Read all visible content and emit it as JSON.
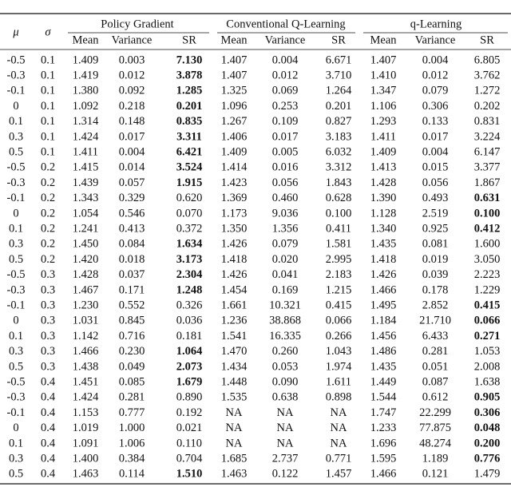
{
  "table": {
    "header": {
      "mu": "μ",
      "sigma": "σ",
      "groups": [
        "Policy Gradient",
        "Conventional Q-Learning",
        "q-Learning"
      ],
      "subheaders": [
        "Mean",
        "Variance",
        "SR",
        "Mean",
        "Variance",
        "SR",
        "Mean",
        "Variance",
        "SR"
      ]
    },
    "rows": [
      {
        "cells": [
          "-0.5",
          "0.1",
          "1.409",
          "0.003",
          "7.130",
          "1.407",
          "0.004",
          "6.671",
          "1.407",
          "0.004",
          "6.805"
        ],
        "bold": [
          4
        ]
      },
      {
        "cells": [
          "-0.3",
          "0.1",
          "1.419",
          "0.012",
          "3.878",
          "1.407",
          "0.012",
          "3.710",
          "1.410",
          "0.012",
          "3.762"
        ],
        "bold": [
          4
        ]
      },
      {
        "cells": [
          "-0.1",
          "0.1",
          "1.380",
          "0.092",
          "1.285",
          "1.325",
          "0.069",
          "1.264",
          "1.347",
          "0.079",
          "1.272"
        ],
        "bold": [
          4
        ]
      },
      {
        "cells": [
          "0",
          "0.1",
          "1.092",
          "0.218",
          "0.201",
          "1.096",
          "0.253",
          "0.201",
          "1.106",
          "0.306",
          "0.202"
        ],
        "bold": [
          4
        ]
      },
      {
        "cells": [
          "0.1",
          "0.1",
          "1.314",
          "0.148",
          "0.835",
          "1.267",
          "0.109",
          "0.827",
          "1.293",
          "0.133",
          "0.831"
        ],
        "bold": [
          4
        ]
      },
      {
        "cells": [
          "0.3",
          "0.1",
          "1.424",
          "0.017",
          "3.311",
          "1.406",
          "0.017",
          "3.183",
          "1.411",
          "0.017",
          "3.224"
        ],
        "bold": [
          4
        ]
      },
      {
        "cells": [
          "0.5",
          "0.1",
          "1.411",
          "0.004",
          "6.421",
          "1.409",
          "0.005",
          "6.032",
          "1.409",
          "0.004",
          "6.147"
        ],
        "bold": [
          4
        ]
      },
      {
        "cells": [
          "-0.5",
          "0.2",
          "1.415",
          "0.014",
          "3.524",
          "1.414",
          "0.016",
          "3.312",
          "1.413",
          "0.015",
          "3.377"
        ],
        "bold": [
          4
        ]
      },
      {
        "cells": [
          "-0.3",
          "0.2",
          "1.439",
          "0.057",
          "1.915",
          "1.423",
          "0.056",
          "1.843",
          "1.428",
          "0.056",
          "1.867"
        ],
        "bold": [
          4
        ]
      },
      {
        "cells": [
          "-0.1",
          "0.2",
          "1.343",
          "0.329",
          "0.620",
          "1.369",
          "0.460",
          "0.628",
          "1.390",
          "0.493",
          "0.631"
        ],
        "bold": [
          10
        ]
      },
      {
        "cells": [
          "0",
          "0.2",
          "1.054",
          "0.546",
          "0.070",
          "1.173",
          "9.036",
          "0.100",
          "1.128",
          "2.519",
          "0.100"
        ],
        "bold": [
          10
        ]
      },
      {
        "cells": [
          "0.1",
          "0.2",
          "1.241",
          "0.413",
          "0.372",
          "1.350",
          "1.356",
          "0.411",
          "1.340",
          "0.925",
          "0.412"
        ],
        "bold": [
          10
        ]
      },
      {
        "cells": [
          "0.3",
          "0.2",
          "1.450",
          "0.084",
          "1.634",
          "1.426",
          "0.079",
          "1.581",
          "1.435",
          "0.081",
          "1.600"
        ],
        "bold": [
          4
        ]
      },
      {
        "cells": [
          "0.5",
          "0.2",
          "1.420",
          "0.018",
          "3.173",
          "1.418",
          "0.020",
          "2.995",
          "1.418",
          "0.019",
          "3.050"
        ],
        "bold": [
          4
        ]
      },
      {
        "cells": [
          "-0.5",
          "0.3",
          "1.428",
          "0.037",
          "2.304",
          "1.426",
          "0.041",
          "2.183",
          "1.426",
          "0.039",
          "2.223"
        ],
        "bold": [
          4
        ]
      },
      {
        "cells": [
          "-0.3",
          "0.3",
          "1.467",
          "0.171",
          "1.248",
          "1.454",
          "0.169",
          "1.215",
          "1.466",
          "0.178",
          "1.229"
        ],
        "bold": [
          4
        ]
      },
      {
        "cells": [
          "-0.1",
          "0.3",
          "1.230",
          "0.552",
          "0.326",
          "1.661",
          "10.321",
          "0.415",
          "1.495",
          "2.852",
          "0.415"
        ],
        "bold": [
          10
        ]
      },
      {
        "cells": [
          "0",
          "0.3",
          "1.031",
          "0.845",
          "0.036",
          "1.236",
          "38.868",
          "0.066",
          "1.184",
          "21.710",
          "0.066"
        ],
        "bold": [
          10
        ]
      },
      {
        "cells": [
          "0.1",
          "0.3",
          "1.142",
          "0.716",
          "0.181",
          "1.541",
          "16.335",
          "0.266",
          "1.456",
          "6.433",
          "0.271"
        ],
        "bold": [
          10
        ]
      },
      {
        "cells": [
          "0.3",
          "0.3",
          "1.466",
          "0.230",
          "1.064",
          "1.470",
          "0.260",
          "1.043",
          "1.486",
          "0.281",
          "1.053"
        ],
        "bold": [
          4
        ]
      },
      {
        "cells": [
          "0.5",
          "0.3",
          "1.438",
          "0.049",
          "2.073",
          "1.434",
          "0.053",
          "1.974",
          "1.435",
          "0.051",
          "2.008"
        ],
        "bold": [
          4
        ]
      },
      {
        "cells": [
          "-0.5",
          "0.4",
          "1.451",
          "0.085",
          "1.679",
          "1.448",
          "0.090",
          "1.611",
          "1.449",
          "0.087",
          "1.638"
        ],
        "bold": [
          4
        ]
      },
      {
        "cells": [
          "-0.3",
          "0.4",
          "1.424",
          "0.281",
          "0.890",
          "1.535",
          "0.638",
          "0.898",
          "1.544",
          "0.612",
          "0.905"
        ],
        "bold": [
          10
        ]
      },
      {
        "cells": [
          "-0.1",
          "0.4",
          "1.153",
          "0.777",
          "0.192",
          "NA",
          "NA",
          "NA",
          "1.747",
          "22.299",
          "0.306"
        ],
        "bold": [
          10
        ]
      },
      {
        "cells": [
          "0",
          "0.4",
          "1.019",
          "1.000",
          "0.021",
          "NA",
          "NA",
          "NA",
          "1.233",
          "77.875",
          "0.048"
        ],
        "bold": [
          10
        ]
      },
      {
        "cells": [
          "0.1",
          "0.4",
          "1.091",
          "1.006",
          "0.110",
          "NA",
          "NA",
          "NA",
          "1.696",
          "48.274",
          "0.200"
        ],
        "bold": [
          10
        ]
      },
      {
        "cells": [
          "0.3",
          "0.4",
          "1.400",
          "0.384",
          "0.704",
          "1.685",
          "2.737",
          "0.771",
          "1.595",
          "1.189",
          "0.776"
        ],
        "bold": [
          10
        ]
      },
      {
        "cells": [
          "0.5",
          "0.4",
          "1.463",
          "0.114",
          "1.510",
          "1.463",
          "0.122",
          "1.457",
          "1.466",
          "0.121",
          "1.479"
        ],
        "bold": [
          4
        ]
      }
    ]
  }
}
